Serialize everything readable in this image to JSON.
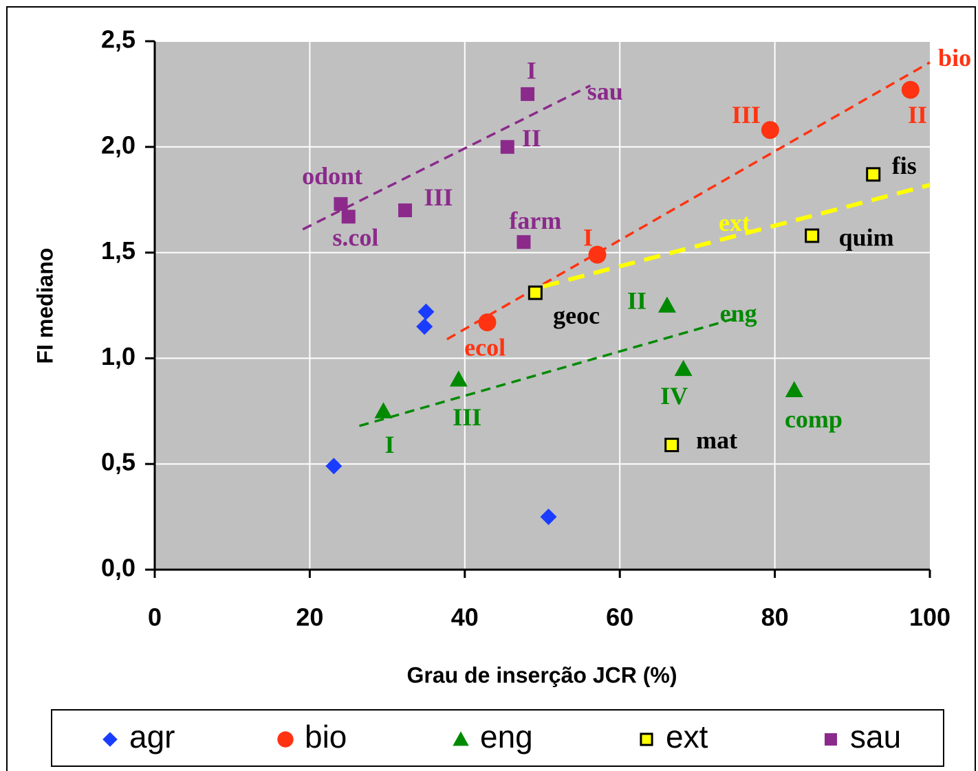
{
  "chart_data": {
    "type": "scatter",
    "xlabel": "Grau de inserção JCR (%)",
    "ylabel": "FI mediano",
    "xlim": [
      0,
      100
    ],
    "xticks": [
      0,
      20,
      40,
      60,
      80,
      100
    ],
    "ylim": [
      0,
      2.5
    ],
    "yticks": [
      {
        "value": 0,
        "label": "0,0"
      },
      {
        "value": 0.5,
        "label": "0,5"
      },
      {
        "value": 1,
        "label": "1,0"
      },
      {
        "value": 1.5,
        "label": "1,5"
      },
      {
        "value": 2,
        "label": "2,0"
      },
      {
        "value": 2.5,
        "label": "2,5"
      }
    ],
    "grid": true,
    "background": "#c0c0c0",
    "legend": "bottom",
    "series": [
      {
        "name": "agr",
        "color": "#1a3cff",
        "marker": "diamond",
        "x": [
          23.1,
          35.0,
          34.8,
          50.8
        ],
        "values": [
          0.49,
          1.22,
          1.15,
          0.25
        ]
      },
      {
        "name": "bio",
        "color": "#ff3311",
        "marker": "circle",
        "x": [
          42.9,
          57.1,
          79.4,
          97.5
        ],
        "values": [
          1.17,
          1.49,
          2.08,
          2.27
        ],
        "trend": {
          "x": [
            37.7,
            100
          ],
          "y": [
            1.09,
            2.4
          ]
        }
      },
      {
        "name": "eng",
        "color": "#008a00",
        "marker": "triangle",
        "x": [
          29.5,
          39.2,
          66.1,
          68.2,
          82.5
        ],
        "values": [
          0.75,
          0.9,
          1.25,
          0.95,
          0.85
        ],
        "trend": {
          "x": [
            26.4,
            75.0
          ],
          "y": [
            0.68,
            1.19
          ]
        }
      },
      {
        "name": "ext",
        "color": "#ffff00",
        "edgecolor": "#000000",
        "marker": "square",
        "x": [
          49.1,
          66.7,
          84.8,
          92.7
        ],
        "values": [
          1.31,
          0.59,
          1.58,
          1.87
        ],
        "trend": {
          "x": [
            50.1,
            100
          ],
          "y": [
            1.34,
            1.82
          ]
        }
      },
      {
        "name": "sau",
        "color": "#8b2a8b",
        "marker": "square",
        "x": [
          48.1,
          45.5,
          24.0,
          25.0,
          32.3,
          47.6
        ],
        "values": [
          2.25,
          2.0,
          1.73,
          1.67,
          1.7,
          1.55
        ],
        "trend": {
          "x": [
            19.1,
            56.2
          ],
          "y": [
            1.61,
            2.29
          ]
        }
      }
    ],
    "annotations": [
      {
        "text": "I",
        "x": 48.6,
        "y": 2.35,
        "color": "#8b2a8b"
      },
      {
        "text": "sau",
        "x": 58.1,
        "y": 2.25,
        "color": "#8b2a8b"
      },
      {
        "text": "II",
        "x": 48.6,
        "y": 2.03,
        "color": "#8b2a8b"
      },
      {
        "text": "odont",
        "x": 22.9,
        "y": 1.85,
        "color": "#8b2a8b"
      },
      {
        "text": "s.col",
        "x": 25.9,
        "y": 1.56,
        "color": "#8b2a8b"
      },
      {
        "text": "III",
        "x": 36.6,
        "y": 1.75,
        "color": "#8b2a8b"
      },
      {
        "text": "farm",
        "x": 49.1,
        "y": 1.64,
        "color": "#8b2a8b"
      },
      {
        "text": "bio",
        "x": 103.2,
        "y": 2.41,
        "color": "#ff3311"
      },
      {
        "text": "III",
        "x": 76.3,
        "y": 2.14,
        "color": "#ff3311"
      },
      {
        "text": "II",
        "x": 98.4,
        "y": 2.14,
        "color": "#ff3311"
      },
      {
        "text": "I",
        "x": 55.9,
        "y": 1.56,
        "color": "#ff3311"
      },
      {
        "text": "ecol",
        "x": 42.6,
        "y": 1.04,
        "color": "#ff3311"
      },
      {
        "text": "ext",
        "x": 74.8,
        "y": 1.63,
        "color": "#ffff00"
      },
      {
        "text": "fis",
        "x": 96.7,
        "y": 1.9,
        "color": "#000000"
      },
      {
        "text": "quim",
        "x": 91.8,
        "y": 1.56,
        "color": "#000000"
      },
      {
        "text": "geoc",
        "x": 54.4,
        "y": 1.19,
        "color": "#000000"
      },
      {
        "text": "mat",
        "x": 72.5,
        "y": 0.6,
        "color": "#000000"
      },
      {
        "text": "II",
        "x": 62.2,
        "y": 1.26,
        "color": "#008a00"
      },
      {
        "text": "eng",
        "x": 75.3,
        "y": 1.2,
        "color": "#008a00"
      },
      {
        "text": "IV",
        "x": 67.0,
        "y": 0.81,
        "color": "#008a00"
      },
      {
        "text": "comp",
        "x": 85.0,
        "y": 0.7,
        "color": "#008a00"
      },
      {
        "text": "III",
        "x": 40.3,
        "y": 0.71,
        "color": "#008a00"
      },
      {
        "text": "I",
        "x": 30.3,
        "y": 0.58,
        "color": "#008a00"
      }
    ]
  }
}
